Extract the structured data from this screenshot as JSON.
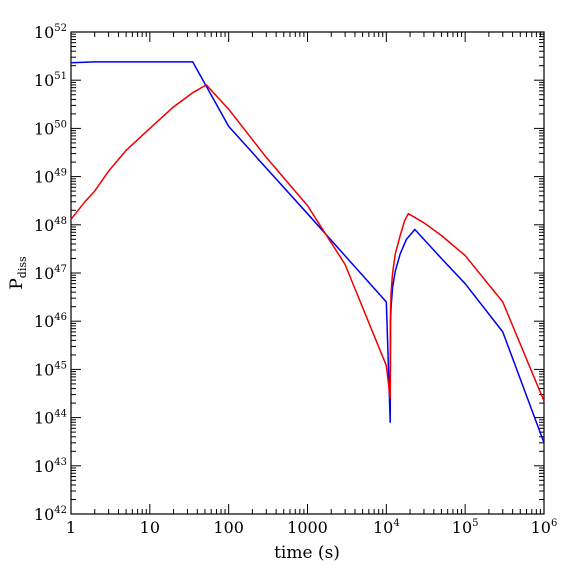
{
  "chart_data": {
    "type": "line",
    "title": "",
    "xlabel": "time (s)",
    "ylabel": "P",
    "ylabel_sub": "diss",
    "x_scale": "log",
    "y_scale": "log",
    "xlim": [
      1,
      1000000
    ],
    "ylim": [
      1e+42,
      1e+52
    ],
    "grid": false,
    "x_ticks": [
      {
        "value": 1,
        "base": "1",
        "exp": ""
      },
      {
        "value": 10,
        "base": "10",
        "exp": ""
      },
      {
        "value": 100,
        "base": "100",
        "exp": ""
      },
      {
        "value": 1000,
        "base": "1000",
        "exp": ""
      },
      {
        "value": 10000,
        "base": "10",
        "exp": "4"
      },
      {
        "value": 100000,
        "base": "10",
        "exp": "5"
      },
      {
        "value": 1000000,
        "base": "10",
        "exp": "6"
      }
    ],
    "y_ticks": [
      {
        "value": 1e+42,
        "base": "10",
        "exp": "42"
      },
      {
        "value": 1e+43,
        "base": "10",
        "exp": "43"
      },
      {
        "value": 1e+44,
        "base": "10",
        "exp": "44"
      },
      {
        "value": 1e+45,
        "base": "10",
        "exp": "45"
      },
      {
        "value": 1e+46,
        "base": "10",
        "exp": "46"
      },
      {
        "value": 1e+47,
        "base": "10",
        "exp": "47"
      },
      {
        "value": 1e+48,
        "base": "10",
        "exp": "48"
      },
      {
        "value": 1e+49,
        "base": "10",
        "exp": "49"
      },
      {
        "value": 1e+50,
        "base": "10",
        "exp": "50"
      },
      {
        "value": 1e+51,
        "base": "10",
        "exp": "51"
      },
      {
        "value": 1e+52,
        "base": "10",
        "exp": "52"
      }
    ],
    "series": [
      {
        "color": "#0000ee",
        "points": [
          [
            1,
            2.3e+51
          ],
          [
            2,
            2.4e+51
          ],
          [
            5,
            2.4e+51
          ],
          [
            10,
            2.4e+51
          ],
          [
            20,
            2.4e+51
          ],
          [
            35,
            2.4e+51
          ],
          [
            100,
            1.1e+50
          ],
          [
            1000,
            1.7e+48
          ],
          [
            10000,
            2.5e+46
          ],
          [
            11200,
            8e+43
          ],
          [
            11300,
            1e+46
          ],
          [
            11500,
            2e+46
          ],
          [
            12000,
            5e+46
          ],
          [
            13000,
            1.1e+47
          ],
          [
            15000,
            2.5e+47
          ],
          [
            18000,
            5e+47
          ],
          [
            23000,
            8e+47
          ],
          [
            50000,
            2e+47
          ],
          [
            100000,
            6e+46
          ],
          [
            300000,
            6e+45
          ],
          [
            1000000,
            3e+43
          ]
        ]
      },
      {
        "color": "#ee0000",
        "points": [
          [
            1,
            1.3e+48
          ],
          [
            1.5,
            3e+48
          ],
          [
            2,
            5e+48
          ],
          [
            3,
            1.3e+49
          ],
          [
            5,
            3.5e+49
          ],
          [
            10,
            1e+50
          ],
          [
            20,
            2.8e+50
          ],
          [
            35,
            5.5e+50
          ],
          [
            52,
            8e+50
          ],
          [
            100,
            2.5e+50
          ],
          [
            300,
            2.5e+49
          ],
          [
            1000,
            2.5e+48
          ],
          [
            3000,
            1.5e+47
          ],
          [
            10000,
            1.2e+45
          ],
          [
            11200,
            2.5e+44
          ],
          [
            11300,
            1.5e+46
          ],
          [
            11500,
            4e+46
          ],
          [
            12000,
            1e+47
          ],
          [
            13000,
            2.5e+47
          ],
          [
            15000,
            6e+47
          ],
          [
            17000,
            1.2e+48
          ],
          [
            19000,
            1.7e+48
          ],
          [
            30000,
            1.1e+48
          ],
          [
            50000,
            6e+47
          ],
          [
            100000,
            2.3e+47
          ],
          [
            300000,
            2.5e+46
          ],
          [
            1000000,
            2.2e+44
          ]
        ]
      }
    ]
  }
}
